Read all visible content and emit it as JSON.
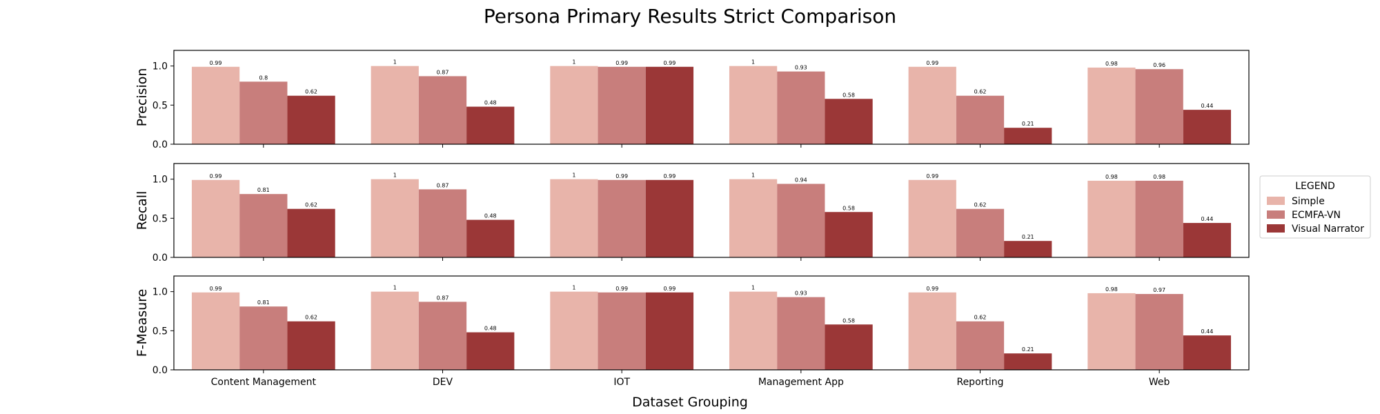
{
  "figure": {
    "title": "Persona Primary Results Strict Comparison",
    "xlabel": "Dataset Grouping"
  },
  "legend": {
    "title": "LEGEND",
    "placement": "right-center",
    "items": [
      {
        "label": "Simple",
        "color": "#e8b4aa"
      },
      {
        "label": "ECMFA-VN",
        "color": "#c87e7c"
      },
      {
        "label": "Visual Narrator",
        "color": "#9b3737"
      }
    ]
  },
  "chart_data": [
    {
      "type": "bar",
      "ylabel": "Precision",
      "ylim": [
        0,
        1.2
      ],
      "yticks": [
        0.0,
        0.5,
        1.0
      ],
      "ytick_labels": [
        "0.0",
        "0.5",
        "1.0"
      ],
      "categories": [
        "Content Management",
        "DEV",
        "IOT",
        "Management App",
        "Reporting",
        "Web"
      ],
      "series": [
        {
          "name": "Simple",
          "values": [
            0.99,
            1,
            1,
            1,
            0.99,
            0.98
          ],
          "labels": [
            "0.99",
            "1",
            "1",
            "1",
            "0.99",
            "0.98"
          ]
        },
        {
          "name": "ECMFA-VN",
          "values": [
            0.8,
            0.87,
            0.99,
            0.93,
            0.62,
            0.96
          ],
          "labels": [
            "0.8",
            "0.87",
            "0.99",
            "0.93",
            "0.62",
            "0.96"
          ]
        },
        {
          "name": "Visual Narrator",
          "values": [
            0.62,
            0.48,
            0.99,
            0.58,
            0.21,
            0.44
          ],
          "labels": [
            "0.62",
            "0.48",
            "0.99",
            "0.58",
            "0.21",
            "0.44"
          ]
        }
      ]
    },
    {
      "type": "bar",
      "ylabel": "Recall",
      "ylim": [
        0,
        1.2
      ],
      "yticks": [
        0.0,
        0.5,
        1.0
      ],
      "ytick_labels": [
        "0.0",
        "0.5",
        "1.0"
      ],
      "categories": [
        "Content Management",
        "DEV",
        "IOT",
        "Management App",
        "Reporting",
        "Web"
      ],
      "series": [
        {
          "name": "Simple",
          "values": [
            0.99,
            1,
            1,
            1,
            0.99,
            0.98
          ],
          "labels": [
            "0.99",
            "1",
            "1",
            "1",
            "0.99",
            "0.98"
          ]
        },
        {
          "name": "ECMFA-VN",
          "values": [
            0.81,
            0.87,
            0.99,
            0.94,
            0.62,
            0.98
          ],
          "labels": [
            "0.81",
            "0.87",
            "0.99",
            "0.94",
            "0.62",
            "0.98"
          ]
        },
        {
          "name": "Visual Narrator",
          "values": [
            0.62,
            0.48,
            0.99,
            0.58,
            0.21,
            0.44
          ],
          "labels": [
            "0.62",
            "0.48",
            "0.99",
            "0.58",
            "0.21",
            "0.44"
          ]
        }
      ]
    },
    {
      "type": "bar",
      "ylabel": "F-Measure",
      "ylim": [
        0,
        1.2
      ],
      "yticks": [
        0.0,
        0.5,
        1.0
      ],
      "ytick_labels": [
        "0.0",
        "0.5",
        "1.0"
      ],
      "categories": [
        "Content Management",
        "DEV",
        "IOT",
        "Management App",
        "Reporting",
        "Web"
      ],
      "series": [
        {
          "name": "Simple",
          "values": [
            0.99,
            1,
            1,
            1,
            0.99,
            0.98
          ],
          "labels": [
            "0.99",
            "1",
            "1",
            "1",
            "0.99",
            "0.98"
          ]
        },
        {
          "name": "ECMFA-VN",
          "values": [
            0.81,
            0.87,
            0.99,
            0.93,
            0.62,
            0.97
          ],
          "labels": [
            "0.81",
            "0.87",
            "0.99",
            "0.93",
            "0.62",
            "0.97"
          ]
        },
        {
          "name": "Visual Narrator",
          "values": [
            0.62,
            0.48,
            0.99,
            0.58,
            0.21,
            0.44
          ],
          "labels": [
            "0.62",
            "0.48",
            "0.99",
            "0.58",
            "0.21",
            "0.44"
          ]
        }
      ]
    }
  ]
}
